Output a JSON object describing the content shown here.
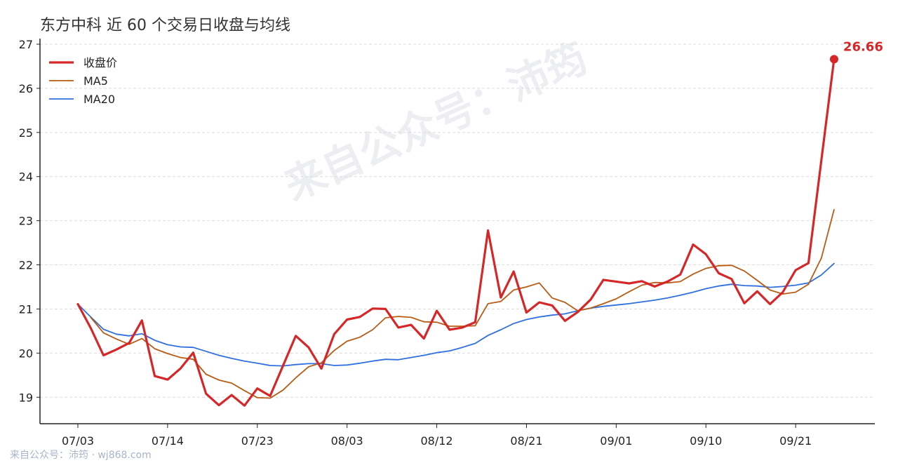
{
  "title": "东方中科 近 60 个交易日收盘与均线",
  "watermark": "来自公众号：沛筠",
  "footer": "来自公众号：沛筠 · wj868.com",
  "colors": {
    "close": "#d62728",
    "ma5": "#b85c14",
    "ma20": "#2f6fe0",
    "grid": "#dcdcdc",
    "axis": "#222222"
  },
  "chart_data": {
    "type": "line",
    "x_ticks": [
      "07/03",
      "07/14",
      "07/23",
      "08/03",
      "08/12",
      "08/21",
      "09/01",
      "09/10",
      "09/21"
    ],
    "x_tick_index": [
      0,
      7,
      14,
      21,
      28,
      35,
      42,
      49,
      56
    ],
    "ylim": [
      18.4,
      27.0
    ],
    "yticks": [
      19,
      20,
      21,
      22,
      23,
      24,
      25,
      26,
      27
    ],
    "grid": true,
    "legend_position": "top-left",
    "series": [
      {
        "name": "收盘价",
        "color": "#d62728",
        "width": 3.2,
        "values": [
          21.11,
          20.57,
          19.95,
          20.08,
          20.23,
          20.74,
          19.48,
          19.4,
          19.65,
          20.01,
          19.08,
          18.82,
          19.05,
          18.81,
          19.2,
          19.03,
          19.71,
          20.39,
          20.13,
          19.65,
          20.43,
          20.76,
          20.82,
          21.01,
          21.0,
          20.58,
          20.64,
          20.33,
          20.96,
          20.53,
          20.58,
          20.7,
          22.78,
          21.26,
          21.85,
          20.92,
          21.15,
          21.08,
          20.73,
          20.93,
          21.21,
          21.66,
          21.62,
          21.58,
          21.63,
          21.51,
          21.62,
          21.78,
          22.46,
          22.24,
          21.81,
          21.68,
          21.13,
          21.4,
          21.11,
          21.38,
          21.88,
          22.04,
          24.36,
          26.66
        ]
      },
      {
        "name": "MA5",
        "color": "#b85c14",
        "width": 1.8,
        "values": [
          null,
          20.81,
          20.46,
          20.32,
          20.2,
          20.33,
          20.1,
          19.99,
          19.9,
          19.86,
          19.52,
          19.39,
          19.32,
          19.15,
          18.99,
          18.98,
          19.16,
          19.44,
          19.69,
          19.78,
          20.06,
          20.27,
          20.36,
          20.53,
          20.8,
          20.83,
          20.81,
          20.71,
          20.7,
          20.61,
          20.61,
          20.62,
          21.12,
          21.17,
          21.43,
          21.5,
          21.59,
          21.25,
          21.15,
          20.96,
          21.02,
          21.12,
          21.23,
          21.39,
          21.54,
          21.6,
          21.59,
          21.62,
          21.79,
          21.92,
          21.98,
          21.99,
          21.86,
          21.65,
          21.43,
          21.34,
          21.38,
          21.56,
          22.15,
          23.25
        ]
      },
      {
        "name": "MA20",
        "color": "#2f6fe0",
        "width": 1.8,
        "values": [
          21.11,
          20.82,
          20.54,
          20.43,
          20.39,
          20.44,
          20.29,
          20.19,
          20.14,
          20.13,
          20.04,
          19.95,
          19.88,
          19.82,
          19.77,
          19.72,
          19.71,
          19.74,
          19.76,
          19.76,
          19.72,
          19.73,
          19.77,
          19.82,
          19.86,
          19.85,
          19.9,
          19.95,
          20.01,
          20.05,
          20.13,
          20.22,
          20.4,
          20.53,
          20.67,
          20.76,
          20.82,
          20.86,
          20.89,
          20.96,
          21.02,
          21.06,
          21.09,
          21.12,
          21.16,
          21.2,
          21.25,
          21.31,
          21.38,
          21.46,
          21.52,
          21.56,
          21.53,
          21.52,
          21.49,
          21.51,
          21.54,
          21.59,
          21.77,
          22.03
        ]
      }
    ],
    "annotation": {
      "text": "26.66",
      "series": 0,
      "index": 59
    }
  }
}
